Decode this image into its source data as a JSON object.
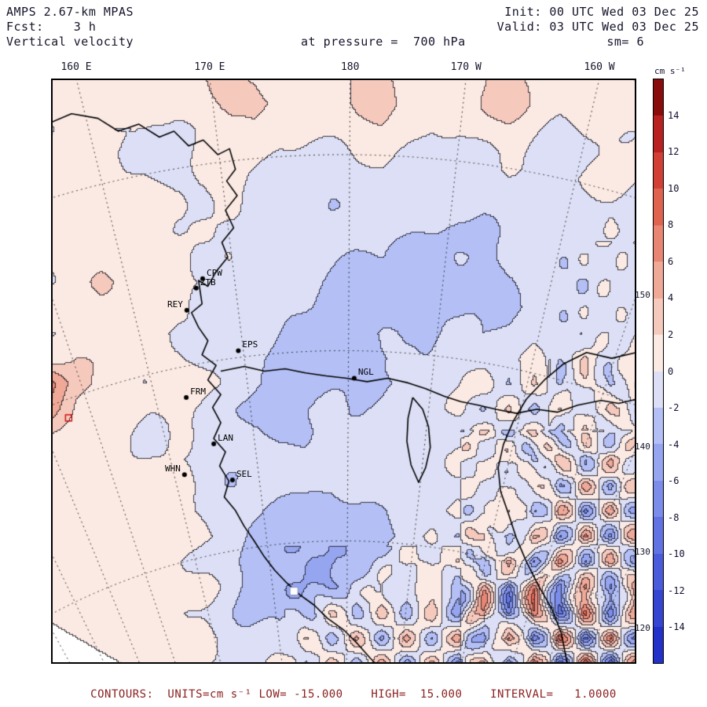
{
  "header": {
    "model": "AMPS 2.67-km MPAS",
    "fcst": "Fcst:    3 h",
    "field": "Vertical velocity",
    "level": "at pressure =  700 hPa",
    "init": "Init: 00 UTC Wed 03 Dec 25",
    "valid": "Valid: 03 UTC Wed 03 Dec 25",
    "smooth": "sm= 6"
  },
  "caption": "CONTOURS:  UNITS=cm s⁻¹ LOW= -15.000    HIGH=  15.000    INTERVAL=   1.0000",
  "chart_data": {
    "type": "heatmap",
    "title": "AMPS 2.67-km MPAS vertical velocity, 3 h forecast, 700 hPa",
    "units": "cm s⁻¹",
    "contour_info": {
      "low": -15.0,
      "high": 15.0,
      "interval": 1.0,
      "smoothing": 6
    },
    "colorbar": {
      "label": "cm s⁻¹",
      "tick_labels": [
        14,
        12,
        10,
        8,
        6,
        4,
        2,
        0,
        -2,
        -4,
        -6,
        -8,
        -10,
        -12,
        -14
      ],
      "cell_colors_neg_to_pos": [
        "#2331c8",
        "#3445d2",
        "#4a5cdc",
        "#6173e3",
        "#7b8ceb",
        "#96a5f0",
        "#b3bff5",
        "#dcdff5",
        "#fbe9e3",
        "#f6c9bd",
        "#f0a897",
        "#e98673",
        "#e06350",
        "#d23f35",
        "#b92020",
        "#8a0b0b"
      ]
    },
    "top_axis": {
      "labels": [
        "160 E",
        "170 E",
        "180",
        "170 W",
        "160 W"
      ],
      "positions": [
        0.043,
        0.271,
        0.511,
        0.709,
        0.937
      ]
    },
    "right_axis": {
      "labels": [
        "150 W",
        "140 W",
        "130 W",
        "120 W"
      ],
      "positions": [
        0.37,
        0.63,
        0.81,
        0.94
      ]
    },
    "grid_note": "Estimated vertical velocity (cm/s) on a 24x24 grid spanning the map area, row 0 = top edge",
    "grid": [
      [
        0.5,
        1,
        2,
        1,
        0.5,
        1,
        2,
        3,
        2,
        1,
        0.5,
        1,
        2.5,
        3,
        1,
        0.5,
        1,
        2.5,
        3,
        1.5,
        0.5,
        1,
        1.5,
        0.5
      ],
      [
        1,
        0.5,
        1,
        2,
        1,
        0.5,
        1,
        2.5,
        3.5,
        1.5,
        0.5,
        0.5,
        2,
        3.5,
        1.5,
        0.5,
        0.5,
        2,
        3,
        1.5,
        0.5,
        0.5,
        1,
        0.5
      ],
      [
        0.5,
        1,
        0.5,
        0,
        -0.5,
        0,
        0.5,
        1.5,
        1.5,
        0.5,
        0,
        0.5,
        1,
        1.5,
        0.5,
        -0.5,
        0,
        1,
        1.5,
        0.5,
        -0.5,
        0,
        0.5,
        0.5
      ],
      [
        1,
        1.5,
        1,
        0,
        -0.5,
        -0.5,
        0.5,
        0.5,
        0.5,
        -0.5,
        -0.5,
        -1,
        0,
        0.5,
        -0.5,
        -1,
        -0.5,
        0,
        0.5,
        -0.5,
        -1,
        -0.5,
        0.5,
        1
      ],
      [
        0.5,
        1.5,
        2,
        0.5,
        -0.5,
        -1,
        0,
        1,
        -0.5,
        -1,
        -1,
        -1.5,
        -1,
        -0.5,
        -1,
        -1.5,
        -1,
        -0.5,
        -0.5,
        -1,
        -0.5,
        0,
        0.5,
        0
      ],
      [
        1.5,
        0.5,
        1.5,
        0.5,
        -0.5,
        0.5,
        -0.5,
        0.5,
        -1,
        -0.5,
        -1,
        -1.5,
        -1,
        -1.5,
        -2,
        -1.5,
        -1,
        -1.5,
        -1,
        -0.5,
        -1,
        -0.5,
        0,
        0.5
      ],
      [
        0.5,
        1,
        0.5,
        1.5,
        0.5,
        -0.5,
        0.5,
        -1,
        -0.5,
        -1,
        -1.5,
        -1,
        -1.5,
        -2.5,
        -2,
        -1.5,
        -2.5,
        -2,
        -1.5,
        -1,
        -0.5,
        -1,
        0,
        -0.5
      ],
      [
        1,
        2,
        1,
        0.5,
        1,
        0.5,
        -0.5,
        0.5,
        -1,
        -1.5,
        -1,
        -2,
        -2.5,
        -2,
        -2.5,
        -3,
        -2,
        -2.5,
        -1.5,
        -2,
        -1,
        -0.5,
        -1,
        0
      ],
      [
        0.5,
        1,
        2,
        1,
        0.5,
        1,
        0.5,
        -0.5,
        -1,
        -1,
        -1.5,
        -2.5,
        -3,
        -2.5,
        -2,
        -2.5,
        -3,
        -2.5,
        -2,
        -1.5,
        -1,
        -1.5,
        -0.5,
        -1
      ],
      [
        1.5,
        0.5,
        1,
        2,
        1,
        0.5,
        -0.5,
        -1,
        -0.5,
        -1.5,
        -2,
        -2.5,
        -2,
        -3,
        -2.5,
        -2,
        -2.5,
        -2,
        -2.5,
        -1.5,
        -1,
        -0.5,
        -1,
        -0.5
      ],
      [
        0.5,
        1,
        0.5,
        1,
        0.5,
        -0.5,
        0.5,
        -1,
        -1.5,
        -2,
        -2.5,
        -3,
        -2.5,
        -2,
        -2.5,
        -2,
        -1.5,
        -2,
        -1.5,
        -1,
        -1.5,
        -1,
        -0.5,
        -1
      ],
      [
        1,
        2,
        1,
        0.5,
        1,
        0.5,
        -0.5,
        -1,
        -2,
        -2.5,
        -3,
        -3.5,
        -3,
        -2.5,
        -2,
        -1.5,
        -1,
        -1.5,
        -0.5,
        1,
        -1.5,
        2,
        -2,
        1.5
      ],
      [
        7,
        3,
        1,
        0.5,
        0.5,
        1,
        0.5,
        -0.5,
        -1.5,
        -2.5,
        -3.5,
        -3,
        -2.5,
        -2,
        -1.5,
        -1,
        -0.5,
        1.5,
        -2,
        2.5,
        -3,
        2,
        -2.5,
        2
      ],
      [
        6,
        2,
        0.5,
        1,
        0.5,
        0.5,
        -0.5,
        -1.5,
        -2.5,
        -3,
        -2.5,
        -2,
        -1.5,
        -1,
        -0.5,
        -1,
        1,
        -2.5,
        3,
        -3.5,
        2.5,
        -2,
        3,
        -2.5
      ],
      [
        2,
        1,
        0.5,
        0.5,
        -0.5,
        0.5,
        -1,
        -1.5,
        -2,
        -2.5,
        -2,
        -1.5,
        -1,
        -0.5,
        -1,
        -0.5,
        -1.5,
        2,
        -3,
        3,
        -4,
        3,
        -3,
        2.5
      ],
      [
        1,
        0.5,
        1,
        0.5,
        0.5,
        -0.5,
        -1.5,
        -1,
        -1.5,
        -1,
        -1.5,
        -1,
        -0.5,
        -1,
        -0.5,
        -1,
        1.5,
        -2,
        2.5,
        -3,
        3.5,
        -3,
        4,
        -2
      ],
      [
        0.5,
        1,
        1.5,
        1,
        0.5,
        1,
        -0.5,
        -1.5,
        -2,
        -1.5,
        -1,
        -1.5,
        -1,
        -0.5,
        -1,
        -1.5,
        -1,
        1.5,
        -2.5,
        3,
        -4,
        4,
        -3.5,
        3
      ],
      [
        1,
        1.5,
        1,
        1.5,
        1,
        0.5,
        -0.5,
        -1,
        -2,
        -3,
        -2.5,
        -3.5,
        -2.5,
        -2,
        -1.5,
        -1,
        2,
        -3,
        4,
        -5,
        5,
        -5,
        4.5,
        -4
      ],
      [
        0.5,
        1,
        1.5,
        2,
        1.5,
        1,
        0.5,
        -0.5,
        -2.5,
        -3.5,
        -4,
        -3,
        -3.5,
        -2.5,
        -1.5,
        1,
        -2.5,
        4,
        -5,
        6,
        -6,
        5.5,
        -5,
        4.5
      ],
      [
        0.5,
        0.5,
        1,
        1.5,
        1,
        0.5,
        -0.5,
        -1.5,
        -3,
        -4,
        -3.5,
        -4.5,
        -3,
        -2,
        1.5,
        -2,
        3,
        -5,
        6,
        -7,
        7,
        -6,
        5,
        -5
      ],
      [
        0.5,
        1,
        0.5,
        1,
        1.5,
        1,
        0.5,
        -1,
        -2.5,
        -3.5,
        -4,
        -3.5,
        -2.5,
        1,
        -2,
        2.5,
        -4,
        5,
        -7,
        8,
        -8,
        7,
        -6,
        5.5
      ],
      [
        0.5,
        0.5,
        1,
        0.5,
        1,
        0.5,
        -0.5,
        -1.5,
        -2,
        -3,
        -2.5,
        2,
        -3,
        3.5,
        -3,
        3,
        -5,
        6,
        -8,
        9,
        -9,
        8,
        -7,
        6
      ],
      [
        0.5,
        1,
        0.5,
        1,
        0.5,
        1,
        0.5,
        -1,
        -1.5,
        -2,
        2.5,
        -3,
        4,
        -4,
        4,
        -3.5,
        5,
        -7,
        8,
        -9,
        9,
        -8,
        7,
        -6
      ],
      [
        0.5,
        0.5,
        1,
        0.5,
        1,
        0.5,
        -0.5,
        -0.5,
        -1,
        1.5,
        -2,
        3,
        -3.5,
        4.5,
        -4,
        4,
        -6,
        7,
        -9,
        10,
        -10,
        9,
        -8,
        7
      ]
    ],
    "stations": [
      {
        "id": "CPW",
        "fx": 0.259,
        "fy": 0.342,
        "side": "right"
      },
      {
        "id": "ZTB",
        "fx": 0.248,
        "fy": 0.358,
        "side": "right"
      },
      {
        "id": "REY",
        "fx": 0.232,
        "fy": 0.396,
        "side": "left"
      },
      {
        "id": "EPS",
        "fx": 0.32,
        "fy": 0.465,
        "side": "right"
      },
      {
        "id": "NGL",
        "fx": 0.518,
        "fy": 0.512,
        "side": "right"
      },
      {
        "id": "FRM",
        "fx": 0.231,
        "fy": 0.545,
        "side": "right"
      },
      {
        "id": "LAN",
        "fx": 0.278,
        "fy": 0.624,
        "side": "right"
      },
      {
        "id": "WHN",
        "fx": 0.228,
        "fy": 0.677,
        "side": "left"
      },
      {
        "id": "SEL",
        "fx": 0.31,
        "fy": 0.686,
        "side": "right"
      }
    ],
    "markers": [
      {
        "type": "red-open-square",
        "fx": 0.03,
        "fy": 0.58
      },
      {
        "type": "white-square",
        "fx": 0.415,
        "fy": 0.876
      }
    ],
    "coastlines": [
      [
        [
          0.0,
          0.075
        ],
        [
          0.035,
          0.06
        ],
        [
          0.08,
          0.068
        ],
        [
          0.115,
          0.09
        ],
        [
          0.15,
          0.078
        ],
        [
          0.185,
          0.1
        ],
        [
          0.21,
          0.09
        ],
        [
          0.235,
          0.115
        ],
        [
          0.26,
          0.105
        ],
        [
          0.285,
          0.13
        ],
        [
          0.305,
          0.12
        ],
        [
          0.315,
          0.155
        ],
        [
          0.3,
          0.175
        ],
        [
          0.318,
          0.2
        ],
        [
          0.298,
          0.225
        ],
        [
          0.312,
          0.255
        ],
        [
          0.292,
          0.28
        ],
        [
          0.302,
          0.305
        ],
        [
          0.282,
          0.33
        ],
        [
          0.268,
          0.355
        ],
        [
          0.252,
          0.345
        ],
        [
          0.258,
          0.385
        ],
        [
          0.24,
          0.4
        ],
        [
          0.252,
          0.425
        ],
        [
          0.268,
          0.448
        ],
        [
          0.258,
          0.472
        ],
        [
          0.282,
          0.49
        ],
        [
          0.268,
          0.515
        ],
        [
          0.29,
          0.54
        ],
        [
          0.276,
          0.562
        ],
        [
          0.29,
          0.588
        ],
        [
          0.278,
          0.615
        ],
        [
          0.298,
          0.638
        ],
        [
          0.288,
          0.662
        ],
        [
          0.304,
          0.688
        ],
        [
          0.296,
          0.715
        ],
        [
          0.315,
          0.738
        ],
        [
          0.33,
          0.765
        ],
        [
          0.347,
          0.79
        ],
        [
          0.363,
          0.815
        ],
        [
          0.382,
          0.84
        ],
        [
          0.403,
          0.862
        ],
        [
          0.425,
          0.882
        ],
        [
          0.45,
          0.9
        ],
        [
          0.472,
          0.922
        ],
        [
          0.5,
          0.942
        ],
        [
          0.523,
          0.965
        ],
        [
          0.545,
          0.99
        ],
        [
          0.555,
          1.0
        ]
      ],
      [
        [
          0.29,
          0.5
        ],
        [
          0.33,
          0.492
        ],
        [
          0.365,
          0.5
        ],
        [
          0.4,
          0.496
        ],
        [
          0.435,
          0.503
        ],
        [
          0.47,
          0.508
        ],
        [
          0.505,
          0.512
        ],
        [
          0.54,
          0.518
        ],
        [
          0.575,
          0.512
        ],
        [
          0.61,
          0.52
        ],
        [
          0.64,
          0.53
        ],
        [
          0.672,
          0.543
        ],
        [
          0.7,
          0.552
        ],
        [
          0.73,
          0.558
        ],
        [
          0.76,
          0.565
        ],
        [
          0.795,
          0.572
        ],
        [
          0.83,
          0.565
        ],
        [
          0.865,
          0.57
        ],
        [
          0.9,
          0.558
        ],
        [
          0.94,
          0.55
        ],
        [
          0.97,
          0.555
        ],
        [
          1.0,
          0.548
        ]
      ],
      [
        [
          1.0,
          0.468
        ],
        [
          0.958,
          0.478
        ],
        [
          0.915,
          0.468
        ],
        [
          0.875,
          0.488
        ],
        [
          0.843,
          0.515
        ],
        [
          0.812,
          0.548
        ],
        [
          0.79,
          0.585
        ],
        [
          0.773,
          0.625
        ],
        [
          0.764,
          0.665
        ],
        [
          0.768,
          0.705
        ],
        [
          0.782,
          0.745
        ],
        [
          0.795,
          0.785
        ],
        [
          0.812,
          0.825
        ],
        [
          0.832,
          0.865
        ],
        [
          0.855,
          0.905
        ],
        [
          0.872,
          0.948
        ],
        [
          0.882,
          1.0
        ]
      ],
      [
        [
          0.618,
          0.545
        ],
        [
          0.635,
          0.565
        ],
        [
          0.645,
          0.595
        ],
        [
          0.648,
          0.63
        ],
        [
          0.64,
          0.665
        ],
        [
          0.628,
          0.69
        ],
        [
          0.615,
          0.66
        ],
        [
          0.608,
          0.62
        ],
        [
          0.61,
          0.58
        ],
        [
          0.618,
          0.545
        ]
      ]
    ],
    "graticule": {
      "pole": [
        0.5,
        1.85
      ],
      "top_meridians_x": [
        0.043,
        0.271,
        0.511,
        0.709,
        0.937
      ],
      "right_meridians_y": [
        0.37,
        0.63,
        0.81,
        0.94
      ],
      "left_meridians_y": [
        0.37,
        0.63,
        0.81,
        0.94
      ],
      "parallels_center_y": [
        0.13,
        0.465,
        0.79
      ]
    }
  }
}
